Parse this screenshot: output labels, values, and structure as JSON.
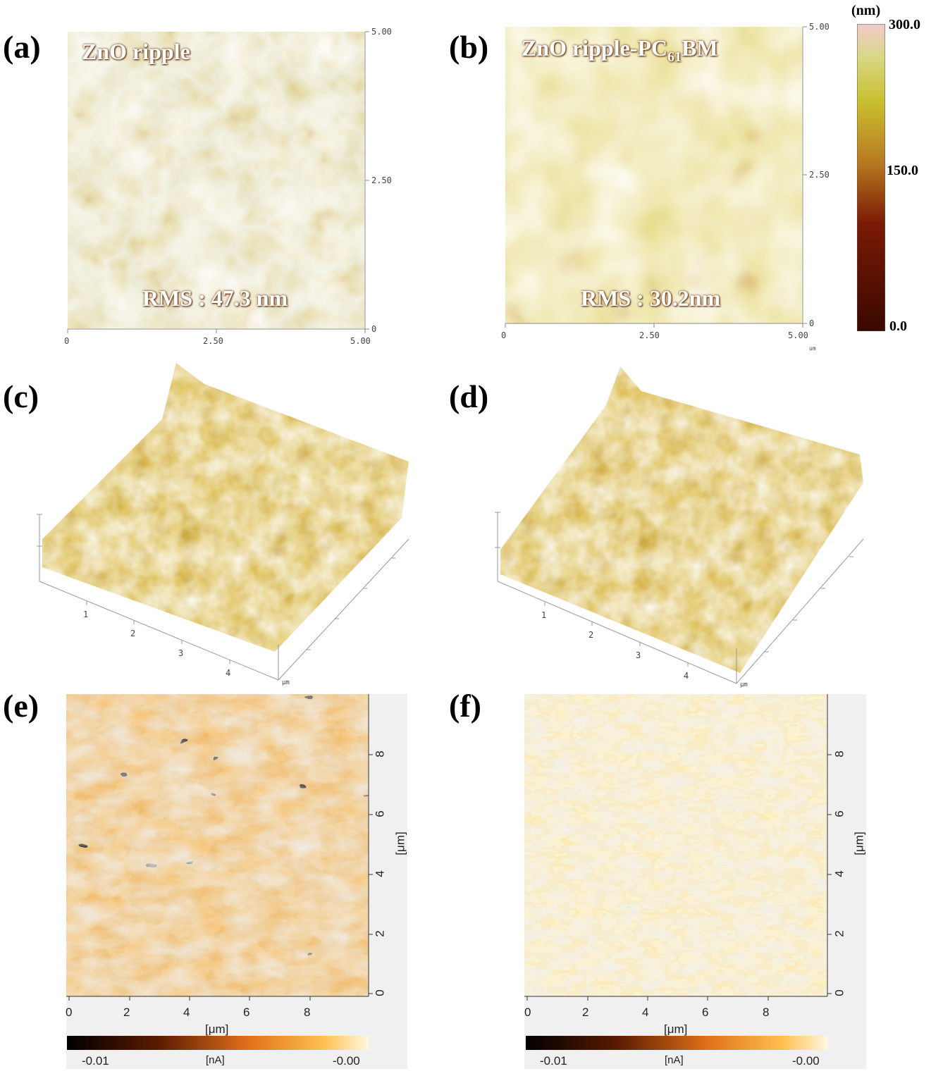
{
  "panels": {
    "a": {
      "letter": "(a)",
      "title": "ZnO ripple",
      "rms": "RMS : 47.3 nm",
      "x_ticks": [
        "0",
        "2.50",
        "5.00"
      ],
      "y_ticks": [
        "5.00",
        "2.50",
        "0"
      ]
    },
    "b": {
      "letter": "(b)",
      "title_main": "ZnO ripple-PC",
      "title_sub": "61",
      "title_tail": "BM",
      "rms": "RMS : 30.2nm",
      "x_ticks": [
        "0",
        "2.50",
        "5.00"
      ],
      "y_ticks": [
        "5.00",
        "2.50",
        "0"
      ],
      "x_unit": "um"
    },
    "c": {
      "letter": "(c)",
      "x_ticks": [
        "1",
        "2",
        "3",
        "4"
      ],
      "unit": "μm"
    },
    "d": {
      "letter": "(d)",
      "x_ticks": [
        "1",
        "2",
        "3",
        "4"
      ],
      "unit": "μm"
    },
    "e": {
      "letter": "(e)",
      "x_ticks": [
        "0",
        "2",
        "4",
        "6",
        "8"
      ],
      "y_ticks": [
        "8",
        "6",
        "4",
        "2",
        "0"
      ],
      "x_label": "[μm]",
      "y_label": "[μm]",
      "cbar_min": "-0.01",
      "cbar_unit": "[nA]",
      "cbar_max": "-0.00"
    },
    "f": {
      "letter": "(f)",
      "x_ticks": [
        "0",
        "2",
        "4",
        "6",
        "8"
      ],
      "y_ticks": [
        "8",
        "6",
        "4",
        "2",
        "0"
      ],
      "x_label": "[μm]",
      "y_label": "[μm]",
      "cbar_min": "-0.01",
      "cbar_unit": "[nA]",
      "cbar_max": "-0.00"
    }
  },
  "height_scale": {
    "unit": "(nm)",
    "max": "300.0",
    "mid": "150.0",
    "min": "0.0"
  },
  "colors": {
    "afm_low": "#5a1800",
    "afm_mid": "#b35f12",
    "afm_ridge": "#d2c45a",
    "afm_peak": "#f0c2b8",
    "cafm_dark": "#000000",
    "cafm_mid": "#e37b1c",
    "cafm_light": "#fff7d6"
  }
}
